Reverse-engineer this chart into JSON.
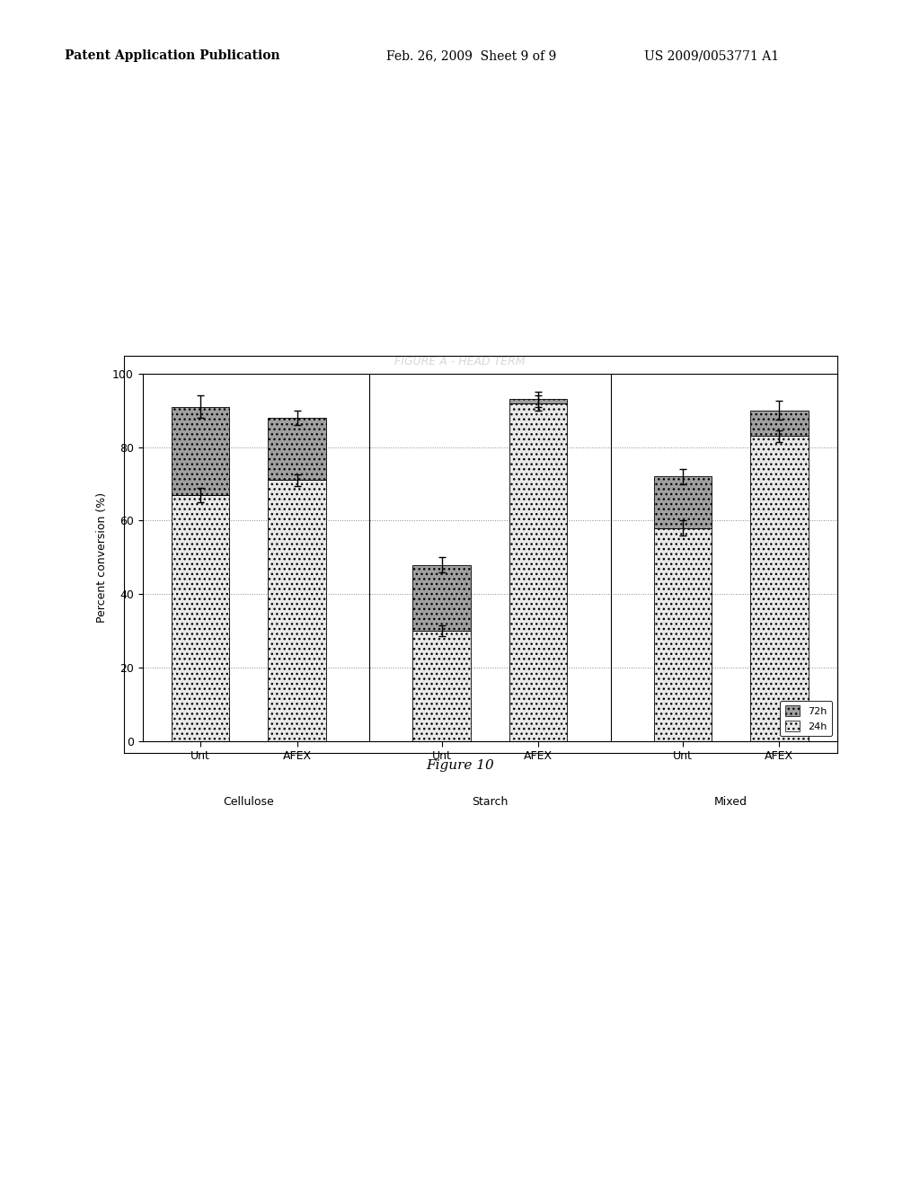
{
  "groups": [
    "Cellulose",
    "Starch",
    "Mixed"
  ],
  "bars": [
    "Unt",
    "AFEX"
  ],
  "val_24h": [
    67,
    71,
    30,
    92,
    58,
    83
  ],
  "val_72h": [
    24,
    17,
    18,
    1,
    14,
    7
  ],
  "err_24h": [
    2.0,
    1.5,
    1.5,
    2.0,
    2.0,
    1.5
  ],
  "err_72h": [
    2.0,
    1.5,
    1.5,
    1.0,
    2.0,
    2.0
  ],
  "err_total": [
    3.0,
    2.0,
    2.0,
    2.0,
    2.0,
    2.5
  ],
  "ylabel": "Percent conversion (%)",
  "ylim": [
    0,
    100
  ],
  "yticks": [
    0,
    20,
    40,
    60,
    80,
    100
  ],
  "bar_width": 0.6,
  "color_24h": "#e8e8e8",
  "color_72h": "#a0a0a0",
  "legend_labels": [
    "72h",
    "24h"
  ],
  "figure_caption": "Figure 10",
  "bg_color": "#ffffff",
  "patent_header_left": "Patent Application Publication",
  "patent_header_mid": "Feb. 26, 2009  Sheet 9 of 9",
  "patent_header_right": "US 2009/0053771 A1"
}
